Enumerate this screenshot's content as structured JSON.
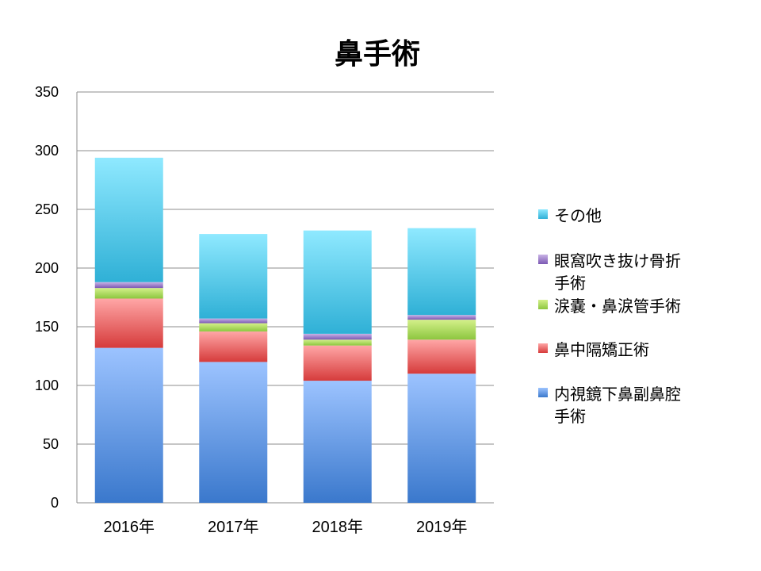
{
  "chart_data": {
    "type": "bar",
    "stacked": true,
    "title": "鼻手術",
    "xlabel": "",
    "ylabel": "",
    "categories": [
      "2016年",
      "2017年",
      "2018年",
      "2019年"
    ],
    "ylim": [
      0,
      350
    ],
    "yticks": [
      "0",
      "50",
      "100",
      "150",
      "200",
      "250",
      "300",
      "350"
    ],
    "grid": true,
    "legend_position": "right",
    "series": [
      {
        "name": "内視鏡下鼻副鼻腔手術",
        "legend_lines": [
          "内視鏡下鼻副鼻腔",
          "手術"
        ],
        "values": [
          132,
          120,
          104,
          110
        ],
        "color_top": "#9cc3ff",
        "color_bottom": "#3a78cc"
      },
      {
        "name": "鼻中隔矯正術",
        "legend_lines": [
          "鼻中隔矯正術"
        ],
        "values": [
          42,
          26,
          30,
          29
        ],
        "color_top": "#ffa6a6",
        "color_bottom": "#d63b3b"
      },
      {
        "name": "涙嚢・鼻涙管手術",
        "legend_lines": [
          "涙嚢・鼻涙管手術"
        ],
        "values": [
          9,
          7,
          5,
          17
        ],
        "color_top": "#d4f08a",
        "color_bottom": "#8cc63f"
      },
      {
        "name": "眼窩吹き抜け骨折手術",
        "legend_lines": [
          "眼窩吹き抜け骨折",
          "手術"
        ],
        "values": [
          5,
          4,
          5,
          4
        ],
        "color_top": "#c9b3e6",
        "color_bottom": "#7b58b3"
      },
      {
        "name": "その他",
        "legend_lines": [
          "その他"
        ],
        "values": [
          106,
          72,
          88,
          74
        ],
        "color_top": "#8fe9ff",
        "color_bottom": "#2fb0d6"
      }
    ]
  }
}
